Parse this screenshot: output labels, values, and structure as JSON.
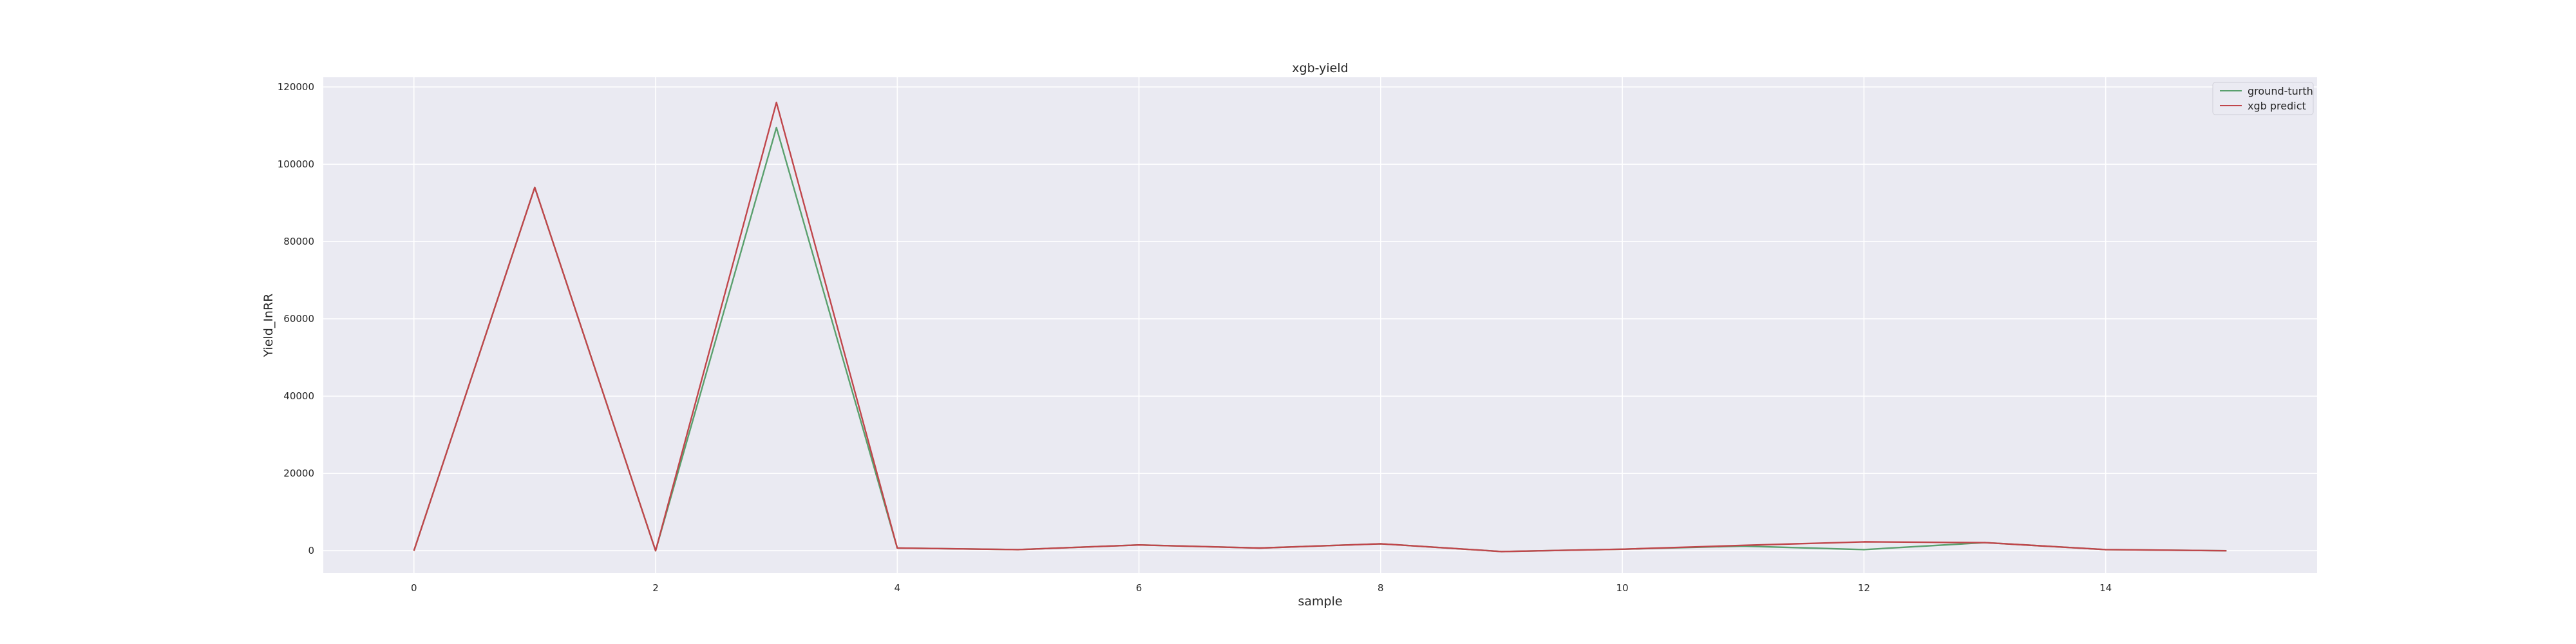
{
  "chart_data": {
    "type": "line",
    "title": "xgb-yield",
    "xlabel": "sample",
    "ylabel": "Yield_InRR",
    "x": [
      0,
      1,
      2,
      3,
      4,
      5,
      6,
      7,
      8,
      9,
      10,
      11,
      12,
      13,
      14,
      15
    ],
    "xticks": [
      "0",
      "2",
      "4",
      "6",
      "8",
      "10",
      "12",
      "14"
    ],
    "yticks": [
      "0",
      "20000",
      "40000",
      "60000",
      "80000",
      "100000",
      "120000"
    ],
    "xlim": [
      -0.75,
      15.75
    ],
    "ylim": [
      -5800,
      122500
    ],
    "grid": true,
    "legend_position": "top-right",
    "series": [
      {
        "name": "ground-turth",
        "color": "#5aa06e",
        "values": [
          0,
          94000,
          0,
          109500,
          700,
          300,
          1500,
          700,
          1800,
          -200,
          400,
          1200,
          300,
          2100,
          300,
          0
        ]
      },
      {
        "name": "xgb predict",
        "color": "#c0464b",
        "values": [
          0,
          94000,
          0,
          116000,
          700,
          300,
          1500,
          700,
          1800,
          -200,
          400,
          1400,
          2300,
          2100,
          300,
          0
        ]
      }
    ]
  }
}
